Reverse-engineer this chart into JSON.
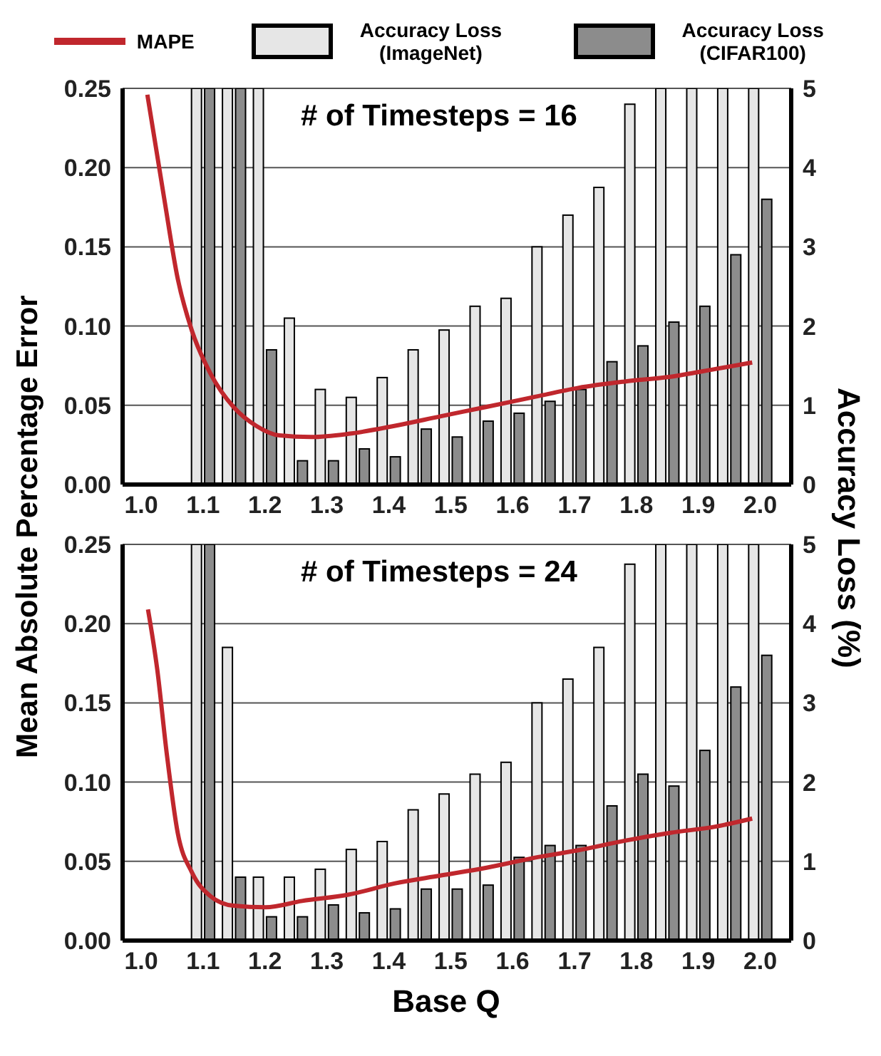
{
  "chart_data": [
    {
      "type": "bar",
      "annotations": [
        "# of Timesteps = 16"
      ],
      "ylabel": "Mean Absolute Percentage Error",
      "y2label": "Accuracy Loss (%)",
      "legend": "top",
      "xlim": [
        0.97,
        2.05
      ],
      "xticks": [
        {
          "value": 1.0,
          "label": "1.0"
        },
        {
          "value": 1.1,
          "label": "1.1"
        },
        {
          "value": 1.2,
          "label": "1.2"
        },
        {
          "value": 1.3,
          "label": "1.3"
        },
        {
          "value": 1.4,
          "label": "1.4"
        },
        {
          "value": 1.5,
          "label": "1.5"
        },
        {
          "value": 1.6,
          "label": "1.6"
        },
        {
          "value": 1.7,
          "label": "1.7"
        },
        {
          "value": 1.8,
          "label": "1.8"
        },
        {
          "value": 1.9,
          "label": "1.9"
        },
        {
          "value": 2.0,
          "label": "2.0"
        }
      ],
      "ylim": [
        0,
        0.25
      ],
      "yticks": [
        {
          "value": 0,
          "label": "0.00"
        },
        {
          "value": 0.05,
          "label": "0.05"
        },
        {
          "value": 0.1,
          "label": "0.10"
        },
        {
          "value": 0.15,
          "label": "0.15"
        },
        {
          "value": 0.2,
          "label": "0.20"
        },
        {
          "value": 0.25,
          "label": "0.25"
        }
      ],
      "y2lim": [
        0,
        5
      ],
      "y2ticks": [
        0,
        1,
        2,
        3,
        4,
        5
      ],
      "grid": "y",
      "x": [
        1.1,
        1.15,
        1.2,
        1.25,
        1.3,
        1.35,
        1.4,
        1.45,
        1.5,
        1.55,
        1.6,
        1.65,
        1.7,
        1.75,
        1.8,
        1.85,
        1.9,
        1.95,
        2.0
      ],
      "series": [
        {
          "name": "MAPE",
          "type": "line",
          "color": "#c0272d",
          "x": [
            1.01,
            1.037,
            1.059,
            1.082,
            1.112,
            1.149,
            1.186,
            1.223,
            1.275,
            1.335,
            1.409,
            1.483,
            1.558,
            1.632,
            1.706,
            1.781,
            1.855,
            1.929,
            1.987
          ],
          "values": [
            0.246,
            0.181,
            0.13,
            0.097,
            0.07,
            0.049,
            0.037,
            0.031,
            0.03,
            0.032,
            0.037,
            0.043,
            0.049,
            0.055,
            0.061,
            0.065,
            0.068,
            0.073,
            0.077
          ]
        },
        {
          "name": "Accuracy Loss (ImageNet)",
          "axis": "y2",
          "color": "#e6e6e6",
          "values": [
            5,
            5,
            5,
            2.1,
            1.2,
            1.1,
            1.35,
            1.7,
            1.95,
            2.25,
            2.35,
            3.0,
            3.4,
            3.75,
            4.8,
            5,
            5,
            5,
            5
          ]
        },
        {
          "name": "Accuracy Loss (CIFAR100)",
          "axis": "y2",
          "color": "#8c8c8c",
          "values": [
            5,
            5,
            1.7,
            0.3,
            0.3,
            0.45,
            0.35,
            0.7,
            0.6,
            0.8,
            0.9,
            1.05,
            1.2,
            1.55,
            1.75,
            2.05,
            2.25,
            2.9,
            3.6
          ]
        }
      ]
    },
    {
      "type": "bar",
      "annotations": [
        "# of Timesteps = 24"
      ],
      "xlabel": "Base Q",
      "xlim": [
        0.97,
        2.05
      ],
      "xticks": [
        {
          "value": 1.0,
          "label": "1.0"
        },
        {
          "value": 1.1,
          "label": "1.1"
        },
        {
          "value": 1.2,
          "label": "1.2"
        },
        {
          "value": 1.3,
          "label": "1.3"
        },
        {
          "value": 1.4,
          "label": "1.4"
        },
        {
          "value": 1.5,
          "label": "1.5"
        },
        {
          "value": 1.6,
          "label": "1.6"
        },
        {
          "value": 1.7,
          "label": "1.7"
        },
        {
          "value": 1.8,
          "label": "1.8"
        },
        {
          "value": 1.9,
          "label": "1.9"
        },
        {
          "value": 2.0,
          "label": "2.0"
        }
      ],
      "ylim": [
        0,
        0.25
      ],
      "yticks": [
        {
          "value": 0,
          "label": "0.00"
        },
        {
          "value": 0.05,
          "label": "0.05"
        },
        {
          "value": 0.1,
          "label": "0.10"
        },
        {
          "value": 0.15,
          "label": "0.15"
        },
        {
          "value": 0.2,
          "label": "0.20"
        },
        {
          "value": 0.25,
          "label": "0.25"
        }
      ],
      "y2lim": [
        0,
        5
      ],
      "y2ticks": [
        0,
        1,
        2,
        3,
        4,
        5
      ],
      "grid": "y",
      "x": [
        1.1,
        1.15,
        1.2,
        1.25,
        1.3,
        1.35,
        1.4,
        1.45,
        1.5,
        1.55,
        1.6,
        1.65,
        1.7,
        1.75,
        1.8,
        1.85,
        1.9,
        1.95,
        2.0
      ],
      "series": [
        {
          "type": "line",
          "color": "#c0272d",
          "x": [
            1.011,
            1.026,
            1.041,
            1.059,
            1.082,
            1.112,
            1.149,
            1.201,
            1.26,
            1.335,
            1.409,
            1.483,
            1.558,
            1.632,
            1.706,
            1.781,
            1.855,
            1.929,
            1.987
          ],
          "values": [
            0.209,
            0.171,
            0.119,
            0.068,
            0.043,
            0.028,
            0.022,
            0.021,
            0.025,
            0.029,
            0.036,
            0.041,
            0.046,
            0.052,
            0.057,
            0.063,
            0.068,
            0.072,
            0.077
          ]
        },
        {
          "axis": "y2",
          "color": "#e6e6e6",
          "values": [
            5,
            3.7,
            0.8,
            0.8,
            0.9,
            1.15,
            1.25,
            1.65,
            1.85,
            2.1,
            2.25,
            3.0,
            3.3,
            3.7,
            4.75,
            5,
            5,
            5,
            5
          ]
        },
        {
          "axis": "y2",
          "color": "#8c8c8c",
          "values": [
            5,
            0.8,
            0.3,
            0.3,
            0.45,
            0.35,
            0.4,
            0.65,
            0.65,
            0.7,
            1.05,
            1.2,
            1.2,
            1.7,
            2.1,
            1.95,
            2.4,
            3.2,
            3.6
          ]
        }
      ]
    }
  ]
}
